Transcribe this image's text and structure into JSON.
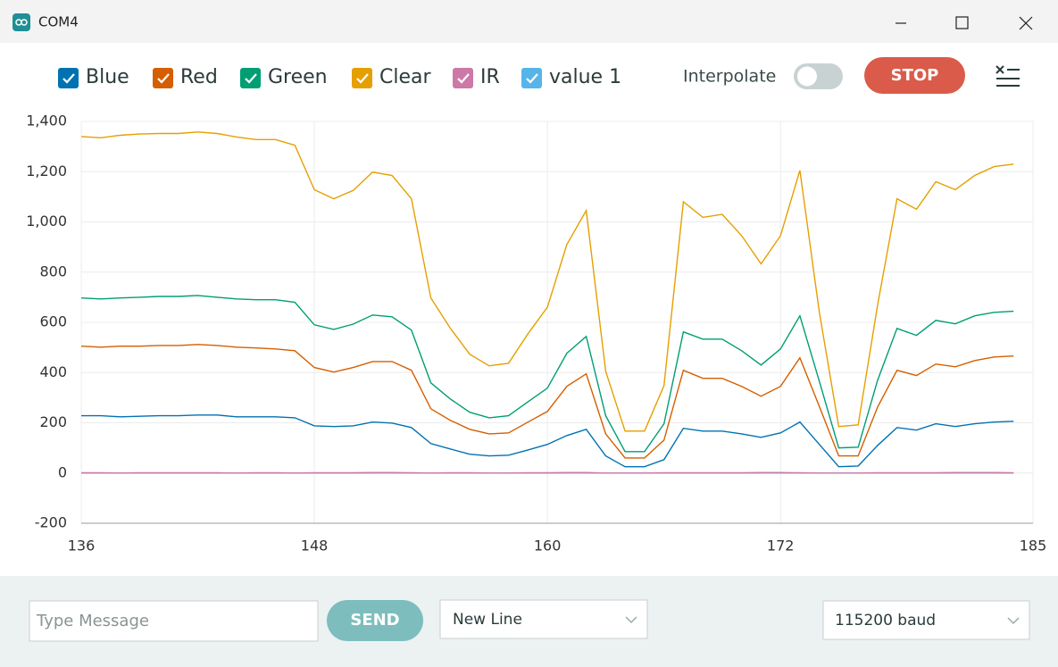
{
  "window": {
    "title": "COM4"
  },
  "controls": {
    "interpolate": "Interpolate",
    "stop": "STOP"
  },
  "chart_data": {
    "type": "line",
    "x": [
      136,
      137,
      138,
      139,
      140,
      141,
      142,
      143,
      144,
      145,
      146,
      147,
      148,
      149,
      150,
      151,
      152,
      153,
      154,
      155,
      156,
      157,
      158,
      159,
      160,
      161,
      162,
      163,
      164,
      165,
      166,
      167,
      168,
      169,
      170,
      171,
      172,
      173,
      174,
      175,
      176,
      177,
      178,
      179,
      180,
      181,
      182,
      183,
      184
    ],
    "series": [
      {
        "name": "Blue",
        "color": "#0072b2",
        "values": [
          228,
          228,
          224,
          226,
          228,
          228,
          231,
          231,
          224,
          224,
          224,
          220,
          188,
          185,
          188,
          203,
          199,
          181,
          117,
          96,
          75,
          68,
          71,
          92,
          114,
          149,
          174,
          68,
          25,
          25,
          53,
          178,
          167,
          167,
          156,
          142,
          160,
          203,
          114,
          25,
          28,
          110,
          181,
          171,
          196,
          185,
          196,
          203,
          206
        ]
      },
      {
        "name": "Red",
        "color": "#d55e00",
        "values": [
          505,
          501,
          505,
          505,
          508,
          508,
          512,
          508,
          501,
          498,
          494,
          487,
          420,
          402,
          420,
          444,
          444,
          409,
          256,
          210,
          174,
          156,
          160,
          203,
          245,
          345,
          395,
          156,
          60,
          60,
          131,
          409,
          377,
          377,
          345,
          306,
          345,
          459,
          265,
          68,
          68,
          263,
          409,
          388,
          434,
          423,
          448,
          462,
          466
        ]
      },
      {
        "name": "Green",
        "color": "#009e73",
        "values": [
          697,
          693,
          697,
          700,
          703,
          703,
          707,
          700,
          693,
          690,
          690,
          680,
          590,
          572,
          593,
          629,
          622,
          569,
          359,
          295,
          242,
          220,
          228,
          284,
          338,
          477,
          544,
          228,
          85,
          85,
          196,
          562,
          533,
          533,
          487,
          430,
          494,
          626,
          365,
          100,
          103,
          370,
          576,
          548,
          608,
          594,
          626,
          640,
          644
        ]
      },
      {
        "name": "Clear",
        "color": "#e69f00",
        "values": [
          1340,
          1335,
          1345,
          1350,
          1352,
          1352,
          1358,
          1352,
          1338,
          1328,
          1328,
          1305,
          1128,
          1092,
          1125,
          1198,
          1185,
          1092,
          697,
          577,
          473,
          427,
          437,
          555,
          660,
          910,
          1045,
          405,
          167,
          167,
          348,
          1080,
          1018,
          1030,
          945,
          833,
          945,
          1205,
          640,
          185,
          192,
          670,
          1092,
          1050,
          1160,
          1128,
          1185,
          1220,
          1230
        ]
      },
      {
        "name": "IR",
        "color": "#cc79a7",
        "values": [
          1,
          1,
          0,
          1,
          1,
          1,
          1,
          1,
          0,
          1,
          1,
          0,
          1,
          1,
          1,
          2,
          2,
          1,
          0,
          1,
          1,
          0,
          0,
          1,
          1,
          2,
          2,
          0,
          0,
          0,
          1,
          1,
          1,
          1,
          1,
          2,
          2,
          1,
          0,
          0,
          0,
          1,
          1,
          1,
          1,
          2,
          2,
          2,
          1
        ]
      },
      {
        "name": "value 1",
        "color": "#56b4e9",
        "values": [
          0,
          0,
          0,
          0,
          0,
          0,
          0,
          0,
          0,
          0,
          0,
          0,
          0,
          0,
          0,
          0,
          0,
          0,
          0,
          0,
          0,
          0,
          0,
          0,
          0,
          0,
          0,
          0,
          0,
          0,
          0,
          0,
          0,
          0,
          0,
          0,
          0,
          0,
          0,
          0,
          0,
          0,
          0,
          0,
          0,
          0,
          0,
          0,
          0
        ]
      }
    ],
    "xlim": [
      136,
      185
    ],
    "xticks": [
      136,
      148,
      160,
      172,
      185
    ],
    "ylim": [
      -200,
      1400
    ],
    "yticks": [
      -200,
      0,
      200,
      400,
      600,
      800,
      {
        "value": 1000,
        "label": "1,000"
      },
      {
        "value": 1200,
        "label": "1,200"
      },
      {
        "value": 1400,
        "label": "1,400"
      }
    ],
    "grid": true
  },
  "footer": {
    "message_placeholder": "Type Message",
    "send": "SEND",
    "line_ending": "New Line",
    "baud": "115200 baud"
  }
}
